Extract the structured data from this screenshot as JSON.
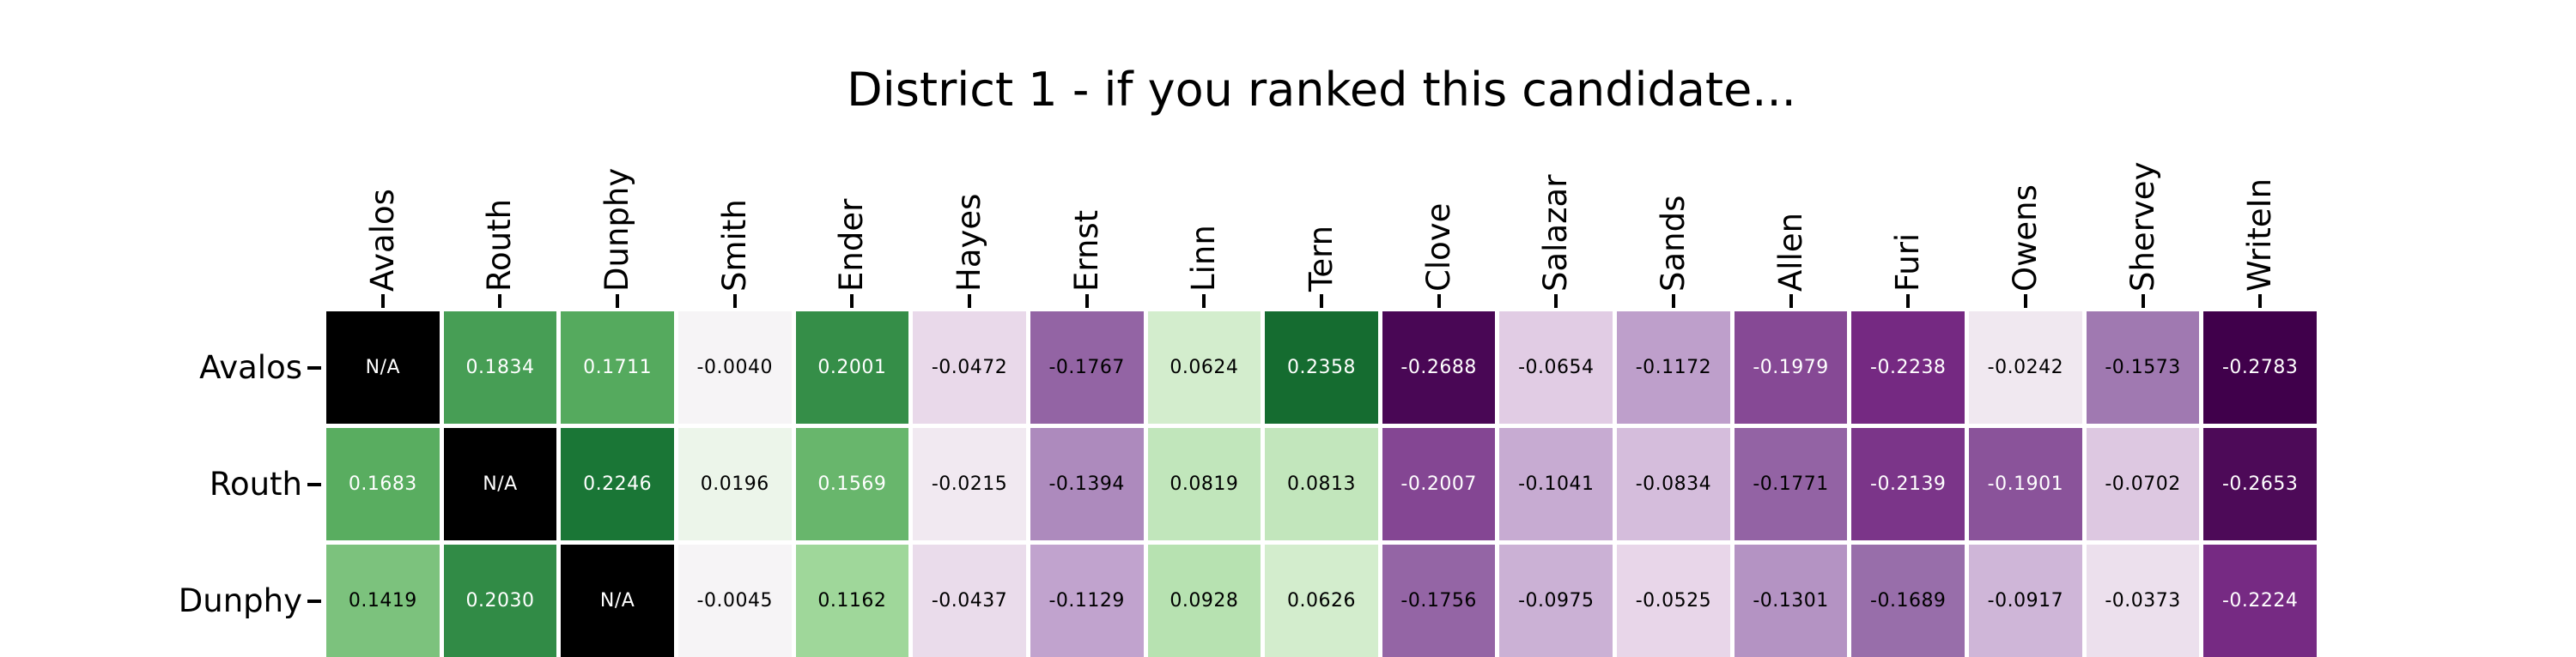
{
  "chart_data": {
    "type": "heatmap",
    "title": "District 1 - if you ranked this candidate...",
    "columns": [
      "Avalos",
      "Routh",
      "Dunphy",
      "Smith",
      "Ender",
      "Hayes",
      "Ernst",
      "Linn",
      "Tern",
      "Clove",
      "Salazar",
      "Sands",
      "Allen",
      "Furi",
      "Owens",
      "Shervey",
      "WriteIn"
    ],
    "rows": [
      "Avalos",
      "Routh",
      "Dunphy"
    ],
    "values": [
      [
        null,
        0.1834,
        0.1711,
        -0.004,
        0.2001,
        -0.0472,
        -0.1767,
        0.0624,
        0.2358,
        -0.2688,
        -0.0654,
        -0.1172,
        -0.1979,
        -0.2238,
        -0.0242,
        -0.1573,
        -0.2783
      ],
      [
        0.1683,
        null,
        0.2246,
        0.0196,
        0.1569,
        -0.0215,
        -0.1394,
        0.0819,
        0.0813,
        -0.2007,
        -0.1041,
        -0.0834,
        -0.1771,
        -0.2139,
        -0.1901,
        -0.0702,
        -0.2653
      ],
      [
        0.1419,
        0.203,
        null,
        -0.0045,
        0.1162,
        -0.0437,
        -0.1129,
        0.0928,
        0.0626,
        -0.1756,
        -0.0975,
        -0.0525,
        -0.1301,
        -0.1689,
        -0.0917,
        -0.0373,
        -0.2224
      ]
    ],
    "na_label": "N/A",
    "value_decimals": 4,
    "colormap": "PRGn",
    "colormap_stops": [
      "#40004b",
      "#762a83",
      "#9970ab",
      "#c2a5cf",
      "#e7d4e8",
      "#f7f7f7",
      "#d9f0d3",
      "#a6dba0",
      "#5aae61",
      "#1b7837",
      "#00441b"
    ],
    "vmin": -0.2783,
    "vmax": 0.2783,
    "na_color": "#000000",
    "annotation_color_dark": "#000000",
    "annotation_color_light": "#ffffff",
    "background": "#ffffff",
    "legend": "none",
    "grid": "off"
  }
}
